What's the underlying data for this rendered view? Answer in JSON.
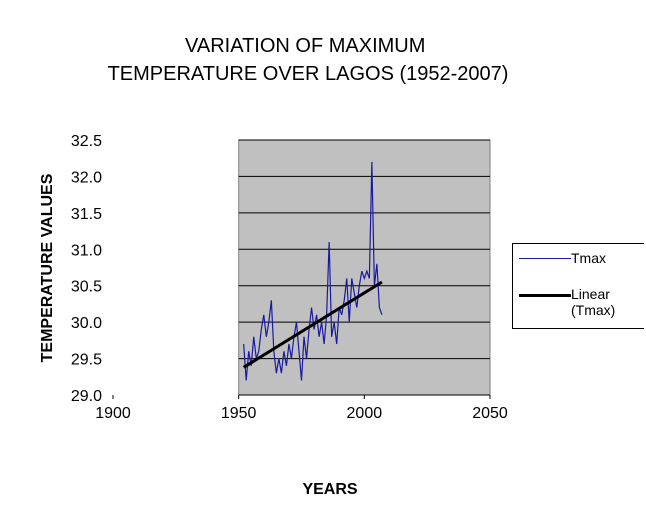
{
  "chart_data": {
    "type": "line",
    "title": "VARIATION OF MAXIMUM TEMPERATURE OVER LAGOS (1952-2007)",
    "x_label": "YEARS",
    "y_label": "TEMPERATURE VALUES",
    "xlim": [
      1900,
      2050
    ],
    "xticks": [
      1900,
      1950,
      2000,
      2050
    ],
    "ylim": [
      29.0,
      32.5
    ],
    "yticks": [
      {
        "value": 29.0,
        "label": "29.0"
      },
      29.5,
      {
        "value": 30.0,
        "label": "30.0"
      },
      30.5,
      {
        "value": 31.0,
        "label": "31.0"
      },
      31.5,
      {
        "value": 32.0,
        "label": "32.0"
      },
      32.5
    ],
    "grid": true,
    "legend": "right",
    "series": [
      {
        "name": "Tmax",
        "color": "#1a1aa0",
        "x": [
          1952,
          1953,
          1954,
          1955,
          1956,
          1957,
          1958,
          1959,
          1960,
          1961,
          1962,
          1963,
          1964,
          1965,
          1966,
          1967,
          1968,
          1969,
          1970,
          1971,
          1972,
          1973,
          1974,
          1975,
          1976,
          1977,
          1978,
          1979,
          1980,
          1981,
          1982,
          1983,
          1984,
          1985,
          1986,
          1987,
          1988,
          1989,
          1990,
          1991,
          1992,
          1993,
          1994,
          1995,
          1996,
          1997,
          1998,
          1999,
          2000,
          2001,
          2002,
          2003,
          2004,
          2005,
          2006,
          2007
        ],
        "values": [
          29.7,
          29.2,
          29.6,
          29.4,
          29.8,
          29.5,
          29.6,
          29.9,
          30.1,
          29.8,
          30.0,
          30.3,
          29.6,
          29.3,
          29.5,
          29.3,
          29.6,
          29.4,
          29.7,
          29.5,
          29.8,
          30.0,
          29.6,
          29.2,
          29.8,
          29.5,
          29.9,
          30.2,
          29.9,
          30.1,
          29.8,
          30.0,
          29.7,
          30.1,
          31.1,
          29.8,
          30.0,
          29.7,
          30.2,
          30.1,
          30.3,
          30.6,
          30.0,
          30.6,
          30.4,
          30.2,
          30.5,
          30.7,
          30.6,
          30.7,
          30.6,
          32.2,
          30.5,
          30.8,
          30.2,
          30.1
        ]
      },
      {
        "name": "Linear (Tmax)",
        "color": "#000000",
        "x": [
          1952,
          2007
        ],
        "values": [
          29.38,
          30.55
        ]
      }
    ]
  }
}
